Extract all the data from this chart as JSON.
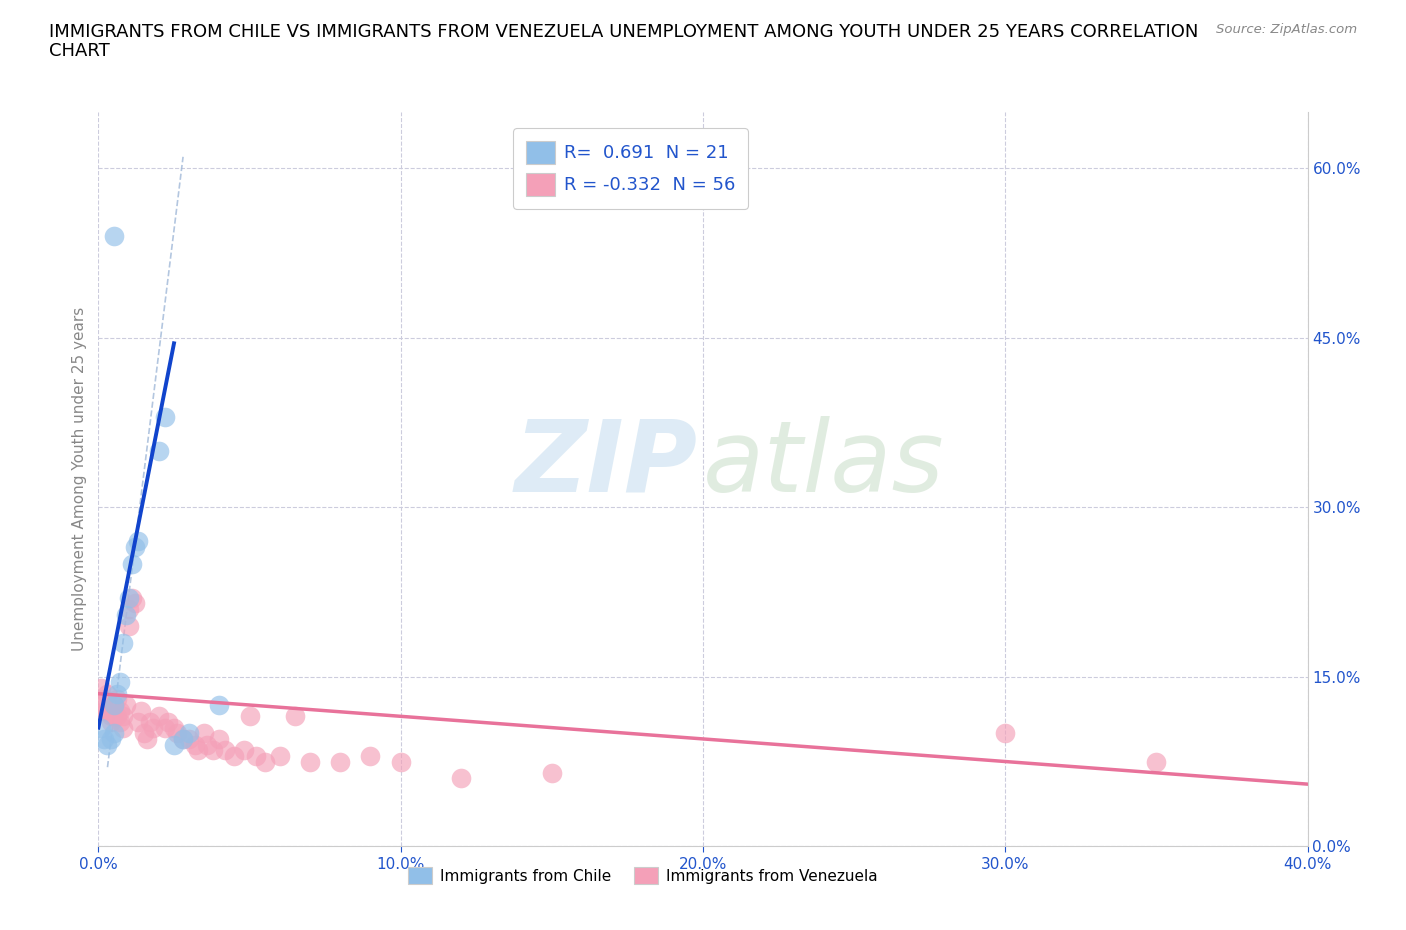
{
  "title_line1": "IMMIGRANTS FROM CHILE VS IMMIGRANTS FROM VENEZUELA UNEMPLOYMENT AMONG YOUTH UNDER 25 YEARS CORRELATION",
  "title_line2": "CHART",
  "source": "Source: ZipAtlas.com",
  "ylabel": "Unemployment Among Youth under 25 years",
  "xlim": [
    0.0,
    0.4
  ],
  "ylim": [
    0.0,
    0.65
  ],
  "xtick_vals": [
    0.0,
    0.1,
    0.2,
    0.3,
    0.4
  ],
  "xticklabels": [
    "0.0%",
    "10.0%",
    "20.0%",
    "30.0%",
    "40.0%"
  ],
  "ytick_vals": [
    0.0,
    0.15,
    0.3,
    0.45,
    0.6
  ],
  "yticklabels_right": [
    "0.0%",
    "15.0%",
    "30.0%",
    "45.0%",
    "60.0%"
  ],
  "chile_color": "#91bfe8",
  "venezuela_color": "#f4a0b8",
  "chile_R": 0.691,
  "chile_N": 21,
  "venezuela_R": -0.332,
  "venezuela_N": 56,
  "legend_color": "#2255cc",
  "chile_line_color": "#1144cc",
  "venezuela_line_color": "#e8729a",
  "diag_color": "#a0b8d8",
  "grid_color": "#ccccdd",
  "background_color": "#ffffff",
  "title_fontsize": 13,
  "axis_label_fontsize": 11,
  "tick_fontsize": 11,
  "chile_points": [
    [
      0.001,
      0.105
    ],
    [
      0.002,
      0.095
    ],
    [
      0.003,
      0.09
    ],
    [
      0.004,
      0.095
    ],
    [
      0.005,
      0.1
    ],
    [
      0.005,
      0.125
    ],
    [
      0.006,
      0.135
    ],
    [
      0.007,
      0.145
    ],
    [
      0.008,
      0.18
    ],
    [
      0.009,
      0.205
    ],
    [
      0.01,
      0.22
    ],
    [
      0.011,
      0.25
    ],
    [
      0.012,
      0.265
    ],
    [
      0.013,
      0.27
    ],
    [
      0.02,
      0.35
    ],
    [
      0.022,
      0.38
    ],
    [
      0.025,
      0.09
    ],
    [
      0.028,
      0.095
    ],
    [
      0.03,
      0.1
    ],
    [
      0.04,
      0.125
    ],
    [
      0.005,
      0.54
    ]
  ],
  "venezuela_points": [
    [
      0.001,
      0.14
    ],
    [
      0.001,
      0.125
    ],
    [
      0.002,
      0.13
    ],
    [
      0.002,
      0.12
    ],
    [
      0.003,
      0.135
    ],
    [
      0.003,
      0.12
    ],
    [
      0.004,
      0.115
    ],
    [
      0.004,
      0.11
    ],
    [
      0.005,
      0.125
    ],
    [
      0.005,
      0.115
    ],
    [
      0.006,
      0.13
    ],
    [
      0.006,
      0.115
    ],
    [
      0.007,
      0.12
    ],
    [
      0.007,
      0.11
    ],
    [
      0.008,
      0.115
    ],
    [
      0.008,
      0.105
    ],
    [
      0.009,
      0.125
    ],
    [
      0.01,
      0.195
    ],
    [
      0.01,
      0.21
    ],
    [
      0.011,
      0.22
    ],
    [
      0.012,
      0.215
    ],
    [
      0.013,
      0.11
    ],
    [
      0.014,
      0.12
    ],
    [
      0.015,
      0.1
    ],
    [
      0.016,
      0.095
    ],
    [
      0.017,
      0.11
    ],
    [
      0.018,
      0.105
    ],
    [
      0.02,
      0.115
    ],
    [
      0.022,
      0.105
    ],
    [
      0.023,
      0.11
    ],
    [
      0.025,
      0.105
    ],
    [
      0.026,
      0.1
    ],
    [
      0.028,
      0.095
    ],
    [
      0.03,
      0.095
    ],
    [
      0.032,
      0.09
    ],
    [
      0.033,
      0.085
    ],
    [
      0.035,
      0.1
    ],
    [
      0.036,
      0.09
    ],
    [
      0.038,
      0.085
    ],
    [
      0.04,
      0.095
    ],
    [
      0.042,
      0.085
    ],
    [
      0.045,
      0.08
    ],
    [
      0.048,
      0.085
    ],
    [
      0.05,
      0.115
    ],
    [
      0.052,
      0.08
    ],
    [
      0.055,
      0.075
    ],
    [
      0.06,
      0.08
    ],
    [
      0.065,
      0.115
    ],
    [
      0.07,
      0.075
    ],
    [
      0.08,
      0.075
    ],
    [
      0.09,
      0.08
    ],
    [
      0.1,
      0.075
    ],
    [
      0.12,
      0.06
    ],
    [
      0.15,
      0.065
    ],
    [
      0.3,
      0.1
    ],
    [
      0.35,
      0.075
    ]
  ],
  "chile_line": [
    [
      0.0,
      0.105
    ],
    [
      0.025,
      0.445
    ]
  ],
  "venezuela_line": [
    [
      0.0,
      0.135
    ],
    [
      0.4,
      0.055
    ]
  ]
}
